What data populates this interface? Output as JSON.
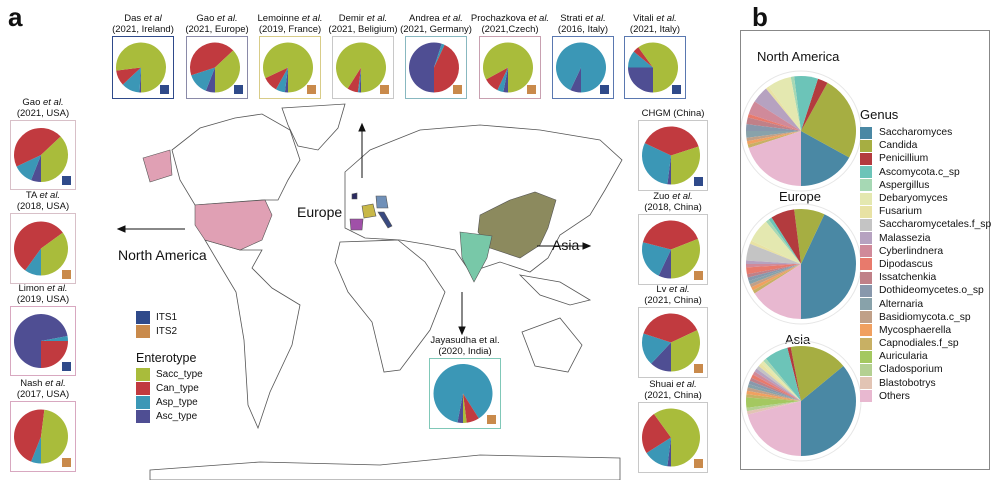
{
  "panel_a": {
    "label": "a",
    "enterotype_colors": {
      "Sacc_type": "#a9bc3b",
      "Can_type": "#c13a3f",
      "Asp_type": "#3b97b6",
      "Asc_type": "#4f4e93"
    },
    "its_colors": {
      "ITS1": "#2f4a8a",
      "ITS2": "#c98a4b"
    },
    "studies": [
      {
        "author": "Das",
        "etal": "et al",
        "line2": "(2021, Ireland)",
        "its": "ITS1",
        "border": "#2f4a8a",
        "enterotype": {
          "Asc_type": 0.01,
          "Asp_type": 0.12,
          "Can_type": 0.1,
          "Sacc_type": 0.77
        }
      },
      {
        "author": "Gao",
        "etal": "et al.",
        "line2": "(2021, Europe)",
        "its": "ITS1",
        "border": "#8a8aa8",
        "enterotype": {
          "Asc_type": 0.06,
          "Asp_type": 0.14,
          "Can_type": 0.43,
          "Sacc_type": 0.37
        }
      },
      {
        "author": "Lemoinne",
        "etal": "et al.",
        "line2": "(2019, France)",
        "its": "ITS2",
        "border": "#d8cc88",
        "enterotype": {
          "Asc_type": 0.02,
          "Asp_type": 0.06,
          "Can_type": 0.1,
          "Sacc_type": 0.82
        }
      },
      {
        "author": "Demir",
        "etal": "et al.",
        "line2": "(2021, Beligium)",
        "its": "ITS2",
        "border": "#c8c8c8",
        "enterotype": {
          "Asc_type": 0.01,
          "Asp_type": 0.01,
          "Can_type": 0.07,
          "Sacc_type": 0.91
        }
      },
      {
        "author": "Andrea",
        "etal": "et al.",
        "line2": "(2021, Germany)",
        "its": "ITS2",
        "border": "#88b8c0",
        "enterotype": {
          "Asc_type": 0.55,
          "Asp_type": 0.02,
          "Can_type": 0.43,
          "Sacc_type": 0.0
        }
      },
      {
        "author": "Prochazkova",
        "etal": "et al.",
        "line2": "(2021,Czech)",
        "its": "ITS2",
        "border": "#c8a0b0",
        "enterotype": {
          "Asc_type": 0.03,
          "Asp_type": 0.04,
          "Can_type": 0.1,
          "Sacc_type": 0.83
        }
      },
      {
        "author": "Strati",
        "etal": "et al.",
        "line2": "(2016, Italy)",
        "its": "ITS1",
        "border": "#5a78b0",
        "enterotype": {
          "Asc_type": 0.07,
          "Asp_type": 0.93,
          "Can_type": 0.0,
          "Sacc_type": 0.0
        }
      },
      {
        "author": "Vitali",
        "etal": "et al.",
        "line2": "(2021, Italy)",
        "its": "ITS1",
        "border": "#5a78b0",
        "enterotype": {
          "Asc_type": 0.25,
          "Asp_type": 0.11,
          "Can_type": 0.04,
          "Sacc_type": 0.6
        }
      },
      {
        "author": "Gao",
        "etal": "et al.",
        "line2": "(2021, USA)",
        "its": "ITS1",
        "border": "#d8c0c8",
        "enterotype": {
          "Asc_type": 0.06,
          "Asp_type": 0.12,
          "Can_type": 0.45,
          "Sacc_type": 0.37
        }
      },
      {
        "author": "TA",
        "etal": "et al.",
        "line2": "(2018, USA)",
        "its": "ITS2",
        "border": "#d8c0c8",
        "enterotype": {
          "Asc_type": 0.0,
          "Asp_type": 0.1,
          "Can_type": 0.55,
          "Sacc_type": 0.35
        }
      },
      {
        "author": "Limon",
        "etal": "et al.",
        "line2": "(2019, USA)",
        "its": "ITS1",
        "border": "#d8a8c0",
        "enterotype": {
          "Asc_type": 0.72,
          "Asp_type": 0.03,
          "Can_type": 0.25,
          "Sacc_type": 0.0
        }
      },
      {
        "author": "Nash",
        "etal": "et al.",
        "line2": "(2017, USA)",
        "its": "ITS2",
        "border": "#d8a8c0",
        "enterotype": {
          "Asc_type": 0.0,
          "Asp_type": 0.06,
          "Can_type": 0.46,
          "Sacc_type": 0.48
        }
      },
      {
        "author": "CHGM (China)",
        "etal": "",
        "line2": "",
        "its": "ITS1",
        "border": "#c8c8c8",
        "enterotype": {
          "Asc_type": 0.02,
          "Asp_type": 0.3,
          "Can_type": 0.38,
          "Sacc_type": 0.3
        }
      },
      {
        "author": "Zuo",
        "etal": "et al.",
        "line2": "(2018, China)",
        "its": "ITS2",
        "border": "#c8c8c8",
        "enterotype": {
          "Asc_type": 0.07,
          "Asp_type": 0.22,
          "Can_type": 0.4,
          "Sacc_type": 0.31
        }
      },
      {
        "author": "Lv",
        "etal": "et al.",
        "line2": "(2021, China)",
        "its": "ITS2",
        "border": "#c8c8c8",
        "enterotype": {
          "Asc_type": 0.12,
          "Asp_type": 0.18,
          "Can_type": 0.38,
          "Sacc_type": 0.32
        }
      },
      {
        "author": "Shuai",
        "etal": "et al.",
        "line2": "(2021, China)",
        "its": "ITS2",
        "border": "#c8c8c8",
        "enterotype": {
          "Asc_type": 0.02,
          "Asp_type": 0.14,
          "Can_type": 0.24,
          "Sacc_type": 0.6
        }
      },
      {
        "author": "Jayasudha et al.",
        "etal": "",
        "line2": "(2020, India)",
        "its": "ITS2",
        "border": "#80c8b8",
        "enterotype": {
          "Asc_type": 0.03,
          "Asp_type": 0.88,
          "Can_type": 0.07,
          "Sacc_type": 0.02
        }
      }
    ],
    "regions": {
      "north_america": "North America",
      "europe": "Europe",
      "asia": "Asia"
    },
    "map_colors": {
      "usa": "#e0a0b4",
      "china": "#8c8a5e",
      "india": "#78c8a8",
      "france": "#c8b848",
      "spain": "#a050a8",
      "germany": "#7090b8",
      "italy": "#3a4a80",
      "ireland": "#2a2a60"
    },
    "its_legend": [
      "ITS1",
      "ITS2"
    ],
    "enterotype_legend": {
      "title": "Enterotype",
      "items": [
        "Sacc_type",
        "Can_type",
        "Asp_type",
        "Asc_type"
      ]
    }
  },
  "panel_b": {
    "label": "b",
    "legend_title": "Genus",
    "genera": [
      {
        "name": "Saccharomyces",
        "color": "#4a88a4"
      },
      {
        "name": "Candida",
        "color": "#a6ae42"
      },
      {
        "name": "Penicillium",
        "color": "#b33b3e"
      },
      {
        "name": "Ascomycota.c_sp",
        "color": "#6cc4b8"
      },
      {
        "name": "Aspergillus",
        "color": "#a6d8b4"
      },
      {
        "name": "Debaryomyces",
        "color": "#e4e8b0"
      },
      {
        "name": "Fusarium",
        "color": "#e8e2a4"
      },
      {
        "name": "Saccharomycetales.f_sp",
        "color": "#c4c4c4"
      },
      {
        "name": "Malassezia",
        "color": "#b6a2c0"
      },
      {
        "name": "Cyberlindnera",
        "color": "#d08a9a"
      },
      {
        "name": "Dipodascus",
        "color": "#e87a6c"
      },
      {
        "name": "Issatchenkia",
        "color": "#c08088"
      },
      {
        "name": "Dothideomycetes.o_sp",
        "color": "#8898ac"
      },
      {
        "name": "Alternaria",
        "color": "#88a2aa"
      },
      {
        "name": "Basidiomycota.c_sp",
        "color": "#c0a088"
      },
      {
        "name": "Mycosphaerella",
        "color": "#f0a060"
      },
      {
        "name": "Capnodiales.f_sp",
        "color": "#c8b064"
      },
      {
        "name": "Auricularia",
        "color": "#a4c860"
      },
      {
        "name": "Cladosporium",
        "color": "#b4d092"
      },
      {
        "name": "Blastobotrys",
        "color": "#e2c4b4"
      },
      {
        "name": "Others",
        "color": "#e8b8d0"
      }
    ],
    "regions": [
      {
        "title": "North America",
        "values": [
          0.17,
          0.25,
          0.03,
          0.07,
          0.01,
          0.07,
          0.01,
          0.0,
          0.05,
          0.04,
          0.01,
          0.02,
          0.02,
          0.02,
          0.01,
          0.01,
          0.01,
          0.0,
          0.0,
          0.0,
          0.2
        ]
      },
      {
        "title": "Europe",
        "values": [
          0.43,
          0.09,
          0.07,
          0.01,
          0.01,
          0.07,
          0.01,
          0.05,
          0.01,
          0.01,
          0.02,
          0.01,
          0.01,
          0.01,
          0.01,
          0.01,
          0.01,
          0.0,
          0.0,
          0.0,
          0.16
        ]
      },
      {
        "title": "Asia",
        "values": [
          0.36,
          0.17,
          0.01,
          0.07,
          0.01,
          0.01,
          0.01,
          0.01,
          0.01,
          0.01,
          0.01,
          0.01,
          0.01,
          0.01,
          0.01,
          0.01,
          0.01,
          0.03,
          0.01,
          0.01,
          0.21
        ]
      }
    ]
  }
}
